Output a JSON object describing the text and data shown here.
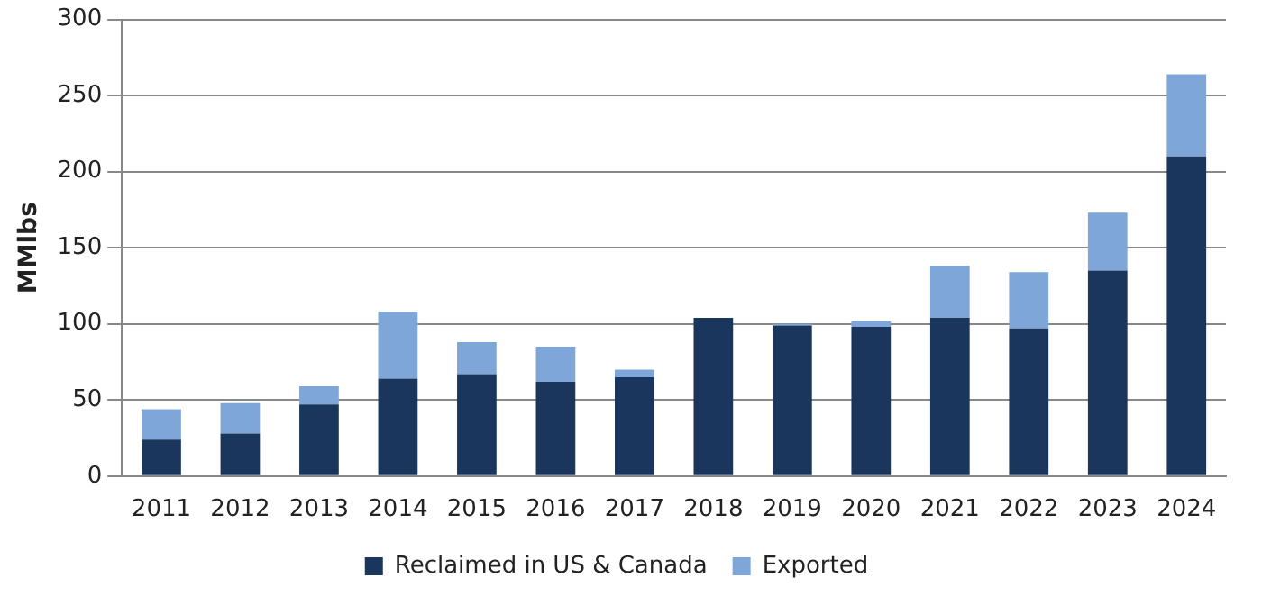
{
  "chart_data": {
    "type": "bar",
    "stacked": true,
    "ylabel": "MMlbs",
    "categories": [
      "2011",
      "2012",
      "2013",
      "2014",
      "2015",
      "2016",
      "2017",
      "2018",
      "2019",
      "2020",
      "2021",
      "2022",
      "2023",
      "2024"
    ],
    "series": [
      {
        "name": "Reclaimed in US & Canada",
        "color": "#1b365d",
        "values": [
          24,
          28,
          47,
          64,
          67,
          62,
          65,
          104,
          99,
          98,
          104,
          97,
          135,
          210
        ]
      },
      {
        "name": "Exported",
        "color": "#7ea6d8",
        "values": [
          20,
          20,
          12,
          44,
          21,
          23,
          5,
          0,
          1,
          4,
          34,
          37,
          38,
          54
        ]
      }
    ],
    "ylim": [
      0,
      300
    ],
    "yticks": [
      0,
      50,
      100,
      150,
      200,
      250,
      300
    ],
    "grid": "y",
    "legend": "bottom"
  }
}
